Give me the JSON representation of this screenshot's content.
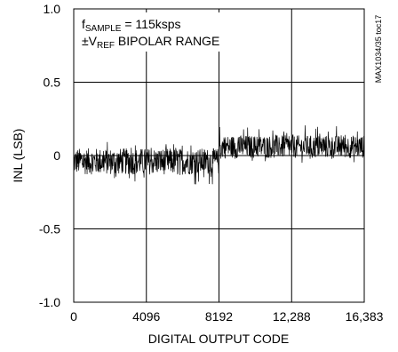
{
  "chart_data": {
    "type": "line",
    "title": "",
    "xlabel": "DIGITAL OUTPUT CODE",
    "ylabel": "INL (LSB)",
    "xlim": [
      0,
      16383
    ],
    "ylim": [
      -1.0,
      1.0
    ],
    "grid": true,
    "x_ticks": [
      0,
      4096,
      8192,
      12288,
      16383
    ],
    "x_tick_labels": [
      "0",
      "4096",
      "8192",
      "12,288",
      "16,383"
    ],
    "y_ticks": [
      1.0,
      0.5,
      0,
      -0.5,
      -1.0
    ],
    "y_tick_labels": [
      "1.0",
      "0.5",
      "0",
      "-0.5",
      "-1.0"
    ],
    "annotations": {
      "line1_prefix": "f",
      "line1_sub": "SAMPLE",
      "line1_suffix": " = 115ksps",
      "line2_prefix": "±V",
      "line2_sub": "REF",
      "line2_suffix": " BIPOLAR RANGE",
      "figure_code": "MAX1034/35 toc17"
    },
    "series": [
      {
        "x_range": [
          0,
          8191
        ],
        "mean": -0.04,
        "noise_band": [
          -0.2,
          0.1
        ]
      },
      {
        "x_range": [
          8192,
          16383
        ],
        "mean": 0.06,
        "noise_band": [
          -0.05,
          0.21
        ]
      }
    ],
    "colors": {
      "trace": "#000000",
      "grid": "#000000",
      "frame": "#000000"
    }
  }
}
